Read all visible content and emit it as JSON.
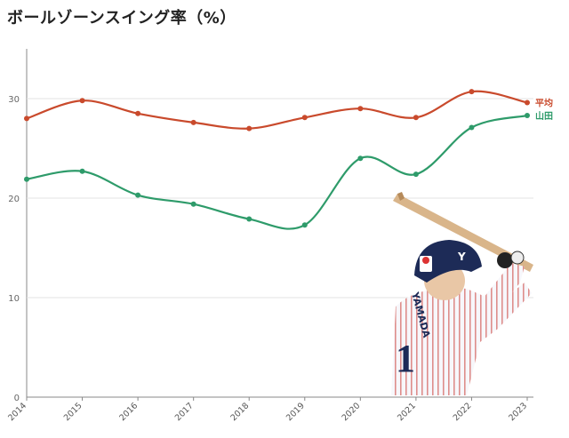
{
  "title": "ボールゾーンスイング率（%）",
  "colors": {
    "avg": "#c94a2c",
    "yamada": "#2e9b6a",
    "grid": "#e3e3e3",
    "axis": "#888888"
  },
  "photo": {
    "icon": "baseball-batter-photo",
    "uniform_text": "YAMADA",
    "number": "1"
  },
  "chart_data": {
    "type": "line",
    "title": "ボールゾーンスイング率（%）",
    "xlabel": "",
    "ylabel": "",
    "x": [
      "2014",
      "2015",
      "2016",
      "2017",
      "2018",
      "2019",
      "2020",
      "2021",
      "2022",
      "2023"
    ],
    "ylim": [
      0,
      35
    ],
    "yticks": [
      "0",
      "10",
      "20",
      "30"
    ],
    "grid": true,
    "series": [
      {
        "name": "平均",
        "color": "#c94a2c",
        "values": [
          28.0,
          29.8,
          28.5,
          27.6,
          27.0,
          28.1,
          29.0,
          28.1,
          30.7,
          29.6
        ]
      },
      {
        "name": "山田",
        "color": "#2e9b6a",
        "values": [
          21.9,
          22.7,
          20.3,
          19.4,
          17.9,
          17.3,
          24.0,
          22.4,
          27.1,
          28.3
        ]
      }
    ]
  }
}
